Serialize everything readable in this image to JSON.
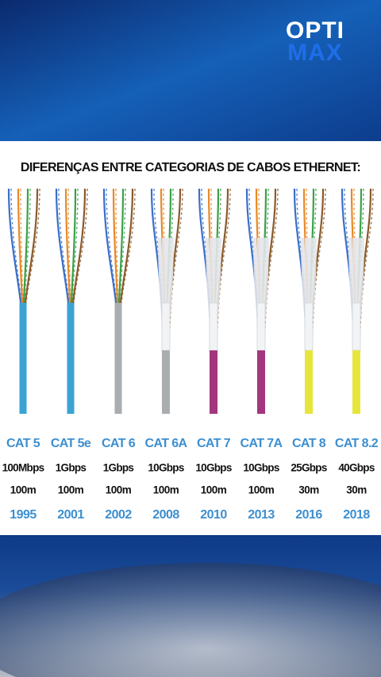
{
  "brand": {
    "line1": "OPTI",
    "line2": "MAX"
  },
  "title": "DIFERENÇAS ENTRE CATEGORIAS DE CABOS ETHERNET:",
  "cables": [
    {
      "name": "CAT 5",
      "speed": "100Mbps",
      "length": "100m",
      "year": "1995"
    },
    {
      "name": "CAT 5e",
      "speed": "1Gbps",
      "length": "100m",
      "year": "2001"
    },
    {
      "name": "CAT 6",
      "speed": "1Gbps",
      "length": "100m",
      "year": "2002"
    },
    {
      "name": "CAT 6A",
      "speed": "10Gbps",
      "length": "100m",
      "year": "2008"
    },
    {
      "name": "CAT 7",
      "speed": "10Gbps",
      "length": "100m",
      "year": "2010"
    },
    {
      "name": "CAT 7A",
      "speed": "10Gbps",
      "length": "100m",
      "year": "2013"
    },
    {
      "name": "CAT 8",
      "speed": "25Gbps",
      "length": "30m",
      "year": "2016"
    },
    {
      "name": "CAT 8.2",
      "speed": "40Gbps",
      "length": "30m",
      "year": "2018"
    }
  ]
}
